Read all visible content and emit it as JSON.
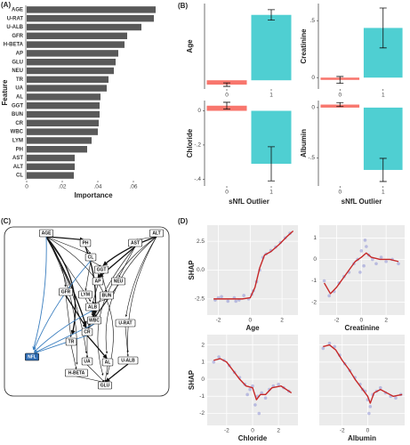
{
  "panel_labels": [
    "(A)",
    "(B)",
    "(C)",
    "(D)"
  ],
  "chart_data": [
    {
      "type": "hbar",
      "categories": [
        "AGE",
        "U-RAT",
        "U-ALB",
        "GFR",
        "H-BETA",
        "AP",
        "GLU",
        "NEU",
        "TR",
        "UA",
        "AL",
        "GGT",
        "BUN",
        "CR",
        "WBC",
        "LYM",
        "PH",
        "AST",
        "ALT",
        "CL"
      ],
      "values": [
        0.0725,
        0.0715,
        0.0645,
        0.0565,
        0.055,
        0.0515,
        0.05,
        0.049,
        0.046,
        0.045,
        0.0415,
        0.041,
        0.041,
        0.0405,
        0.04,
        0.0365,
        0.034,
        0.027,
        0.027,
        0.0265
      ],
      "color": "#595959",
      "xlim": [
        0,
        0.075
      ],
      "xticks": [
        0,
        {
          "value": 0.02,
          "label": ".02"
        },
        {
          "value": 0.04,
          "label": ".04"
        },
        {
          "value": 0.06,
          "label": ".06"
        }
      ],
      "xlabel": "Importance",
      "ylabel": "Feature"
    },
    {
      "type": "bar",
      "ylabel": "Age",
      "categories": [
        "0",
        "1"
      ],
      "values": [
        -0.05,
        0.75
      ],
      "errors": [
        0.02,
        0.06
      ],
      "colors": [
        "#f8766d",
        "#4fcfd2"
      ],
      "ylim": [
        -0.1,
        0.88
      ]
    },
    {
      "type": "bar",
      "ylabel": "Creatinine",
      "categories": [
        "0",
        "1"
      ],
      "values": [
        -0.02,
        0.436
      ],
      "errors": [
        0.03,
        0.175
      ],
      "colors": [
        "#f8766d",
        "#4fcfd2"
      ],
      "ylim": [
        -0.1,
        0.65
      ],
      "yticks": [
        0,
        {
          "value": 0.5,
          "label": ".5"
        }
      ]
    },
    {
      "type": "bar",
      "ylabel": "Chloride",
      "xlabel": "sNfL Outlier",
      "categories": [
        "0",
        "1"
      ],
      "values": [
        0.03,
        -0.31
      ],
      "errors": [
        0.02,
        0.1
      ],
      "colors": [
        "#f8766d",
        "#4fcfd2"
      ],
      "ylim": [
        -0.44,
        0.06
      ],
      "yticks": [
        {
          "value": -0.4,
          "label": "-.4"
        },
        {
          "value": -0.2,
          "label": "-.2"
        },
        0
      ]
    },
    {
      "type": "bar",
      "ylabel": "Albumin",
      "xlabel": "sNfL Outlier",
      "categories": [
        "0",
        "1"
      ],
      "values": [
        0.03,
        -0.62
      ],
      "errors": [
        0.02,
        0.115
      ],
      "colors": [
        "#f8766d",
        "#4fcfd2"
      ],
      "ylim": [
        -0.78,
        0.07
      ],
      "yticks": [
        {
          "value": -0.5,
          "label": "-.5"
        },
        0
      ]
    },
    {
      "type": "line",
      "xlabel": "Age",
      "ylabel": "SHAP",
      "color": "#c62828",
      "point_color": "#5a5fc9",
      "x": [
        -2.3,
        -1.5,
        -0.5,
        0,
        0.3,
        0.6,
        0.9,
        1.3,
        1.8,
        2.3,
        2.7
      ],
      "values": [
        -2.5,
        -2.5,
        -2.5,
        -2.4,
        -1.5,
        0.2,
        1.3,
        1.6,
        2.2,
        2.9,
        3.4
      ],
      "points_x": [
        -2.2,
        -1.8,
        -1.4,
        -1.0,
        -0.7,
        -0.4,
        -0.1,
        0.2,
        0.4,
        0.6,
        0.8,
        1.0,
        1.3,
        1.6,
        1.9,
        2.2,
        2.5,
        -2.0,
        -0.9,
        0.1
      ],
      "points_y": [
        -2.6,
        -2.3,
        -2.7,
        -2.4,
        -2.6,
        -2.2,
        -2.5,
        -1.8,
        -1.0,
        0.0,
        1.1,
        1.4,
        1.7,
        2.0,
        2.4,
        2.8,
        3.2,
        -2.4,
        -2.7,
        -2.1
      ],
      "xlim": [
        -2.7,
        3.0
      ],
      "xticks": [
        -2,
        0,
        2
      ],
      "ylim": [
        -3.9,
        3.9
      ],
      "yticks": [
        -2.5,
        {
          "value": 0,
          "label": "0.0"
        },
        2.5
      ]
    },
    {
      "type": "line",
      "xlabel": "Creatinine",
      "color": "#c62828",
      "point_color": "#5a5fc9",
      "x": [
        -3,
        -2.5,
        -2,
        -1.5,
        -1,
        -0.5,
        0,
        0.4,
        0.8,
        1.5,
        2.3,
        3
      ],
      "values": [
        -1.1,
        -1.6,
        -1.3,
        -0.9,
        -0.5,
        -0.1,
        0.1,
        0.3,
        0.1,
        0,
        0,
        -0.1
      ],
      "points_x": [
        -3.0,
        -2.6,
        -2.2,
        -1.8,
        -1.4,
        -1.0,
        -0.6,
        -0.3,
        0,
        0.2,
        0.4,
        0.6,
        0.9,
        1.2,
        1.6,
        2.0,
        2.5,
        3.0,
        -0.1,
        0.3
      ],
      "points_y": [
        -1.0,
        -1.7,
        -1.5,
        -1.1,
        -0.8,
        -0.6,
        -0.2,
        0.0,
        0.4,
        -0.3,
        0.6,
        0.2,
        0.0,
        -0.2,
        0.1,
        -0.1,
        0.0,
        -0.2,
        -0.6,
        0.9
      ],
      "xlim": [
        -3.4,
        3.5
      ],
      "xticks": [
        -2,
        0,
        2
      ],
      "ylim": [
        -2.6,
        1.6
      ],
      "yticks": [
        -2,
        -1,
        0,
        1
      ]
    },
    {
      "type": "line",
      "xlabel": "Chloride",
      "ylabel": "SHAP",
      "color": "#c62828",
      "point_color": "#5a5fc9",
      "x": [
        -3,
        -2.5,
        -2,
        -1.5,
        -1,
        -0.5,
        0,
        0.3,
        0.6,
        1,
        1.5,
        2.2,
        3
      ],
      "values": [
        1.1,
        1.2,
        1.0,
        0.5,
        0,
        -0.4,
        -0.5,
        -1.2,
        -0.9,
        -0.9,
        -0.5,
        -0.4,
        -0.8
      ],
      "points_x": [
        -3.0,
        -2.6,
        -2.2,
        -1.8,
        -1.4,
        -1.0,
        -0.6,
        -0.2,
        0,
        0.2,
        0.4,
        0.7,
        1.0,
        1.3,
        1.6,
        2.0,
        2.4,
        2.8,
        -0.4,
        0.5
      ],
      "points_y": [
        1.0,
        1.3,
        1.1,
        0.8,
        0.4,
        0.1,
        -0.3,
        -0.6,
        -0.4,
        -1.5,
        -1.0,
        -0.8,
        -1.1,
        -0.6,
        -0.4,
        -0.3,
        -0.5,
        -0.7,
        -0.9,
        -2.0
      ],
      "xlim": [
        -3.5,
        3.5
      ],
      "xticks": [
        -2,
        0,
        2
      ],
      "ylim": [
        -2.7,
        2.6
      ],
      "yticks": [
        -2,
        -1,
        0,
        1,
        2
      ]
    },
    {
      "type": "line",
      "xlabel": "Albumin",
      "color": "#c62828",
      "point_color": "#5a5fc9",
      "x": [
        -3.5,
        -3,
        -2.5,
        -2,
        -1.5,
        -1,
        -0.5,
        0,
        0.2,
        0.5,
        1,
        1.5,
        2,
        2.7
      ],
      "values": [
        1.9,
        2.0,
        1.7,
        1.1,
        0.6,
        0,
        -0.5,
        -1.0,
        -1.4,
        -0.8,
        -0.6,
        -0.8,
        -1.0,
        -0.9
      ],
      "points_x": [
        -3.5,
        -3.0,
        -2.6,
        -2.2,
        -1.8,
        -1.4,
        -1.0,
        -0.6,
        -0.2,
        0,
        0.2,
        0.4,
        0.7,
        1.0,
        1.4,
        1.8,
        2.2,
        2.6,
        -0.4,
        0.1
      ],
      "points_y": [
        1.8,
        2.1,
        1.9,
        1.4,
        0.9,
        0.5,
        0.1,
        -0.3,
        -0.7,
        -1.2,
        -1.6,
        -0.9,
        -0.7,
        -0.5,
        -0.8,
        -1.0,
        -1.1,
        -0.9,
        -0.6,
        -2.0
      ],
      "xlim": [
        -3.8,
        2.9
      ],
      "xticks": [
        -2,
        0
      ],
      "ylim": [
        -2.7,
        2.6
      ],
      "yticks": [
        -2,
        -1,
        0,
        1,
        2
      ],
      "show_ytick_labels": false
    }
  ],
  "diagram": {
    "nodes": [
      "AGE",
      "ALT",
      "PH",
      "AST",
      "CL",
      "GGT",
      "AP",
      "NEU",
      "GFR",
      "LYM",
      "BUN",
      "ALB",
      "WBC",
      "U-RAT",
      "CR",
      "TR",
      "NFL",
      "UA",
      "AL",
      "U-ALB",
      "H-BETA",
      "GLU"
    ]
  }
}
